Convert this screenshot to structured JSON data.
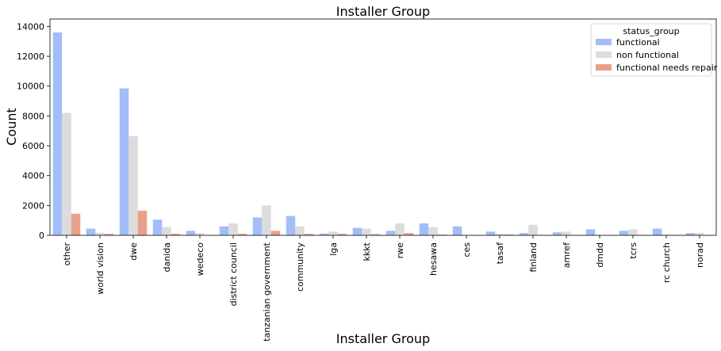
{
  "chart_data": {
    "type": "bar",
    "title": "Installer Group",
    "xlabel": "Installer Group",
    "ylabel": "Count",
    "ylim": [
      0,
      14500
    ],
    "yticks": [
      0,
      2000,
      4000,
      6000,
      8000,
      10000,
      12000,
      14000
    ],
    "categories": [
      "other",
      "world vision",
      "dwe",
      "danida",
      "wedeco",
      "district council",
      "tanzanian government",
      "community",
      "lga",
      "kkkt",
      "rwe",
      "hesawa",
      "ces",
      "tasaf",
      "finland",
      "amref",
      "dmdd",
      "tcrs",
      "rc church",
      "norad"
    ],
    "legend": {
      "title": "status_group",
      "position": "top-right"
    },
    "series": [
      {
        "name": "functional",
        "color": "#a1bef9",
        "values": [
          13600,
          450,
          9850,
          1050,
          300,
          600,
          1200,
          1300,
          120,
          500,
          300,
          800,
          600,
          250,
          150,
          200,
          400,
          300,
          450,
          150
        ]
      },
      {
        "name": "non functional",
        "color": "#dcdcdc",
        "values": [
          8200,
          180,
          6650,
          550,
          150,
          800,
          2000,
          600,
          250,
          450,
          800,
          550,
          20,
          100,
          700,
          250,
          20,
          400,
          50,
          150
        ]
      },
      {
        "name": "functional needs repair",
        "color": "#e9a08a",
        "values": [
          1450,
          100,
          1650,
          100,
          10,
          100,
          300,
          100,
          100,
          80,
          150,
          50,
          10,
          50,
          30,
          20,
          10,
          30,
          30,
          20
        ]
      }
    ]
  }
}
